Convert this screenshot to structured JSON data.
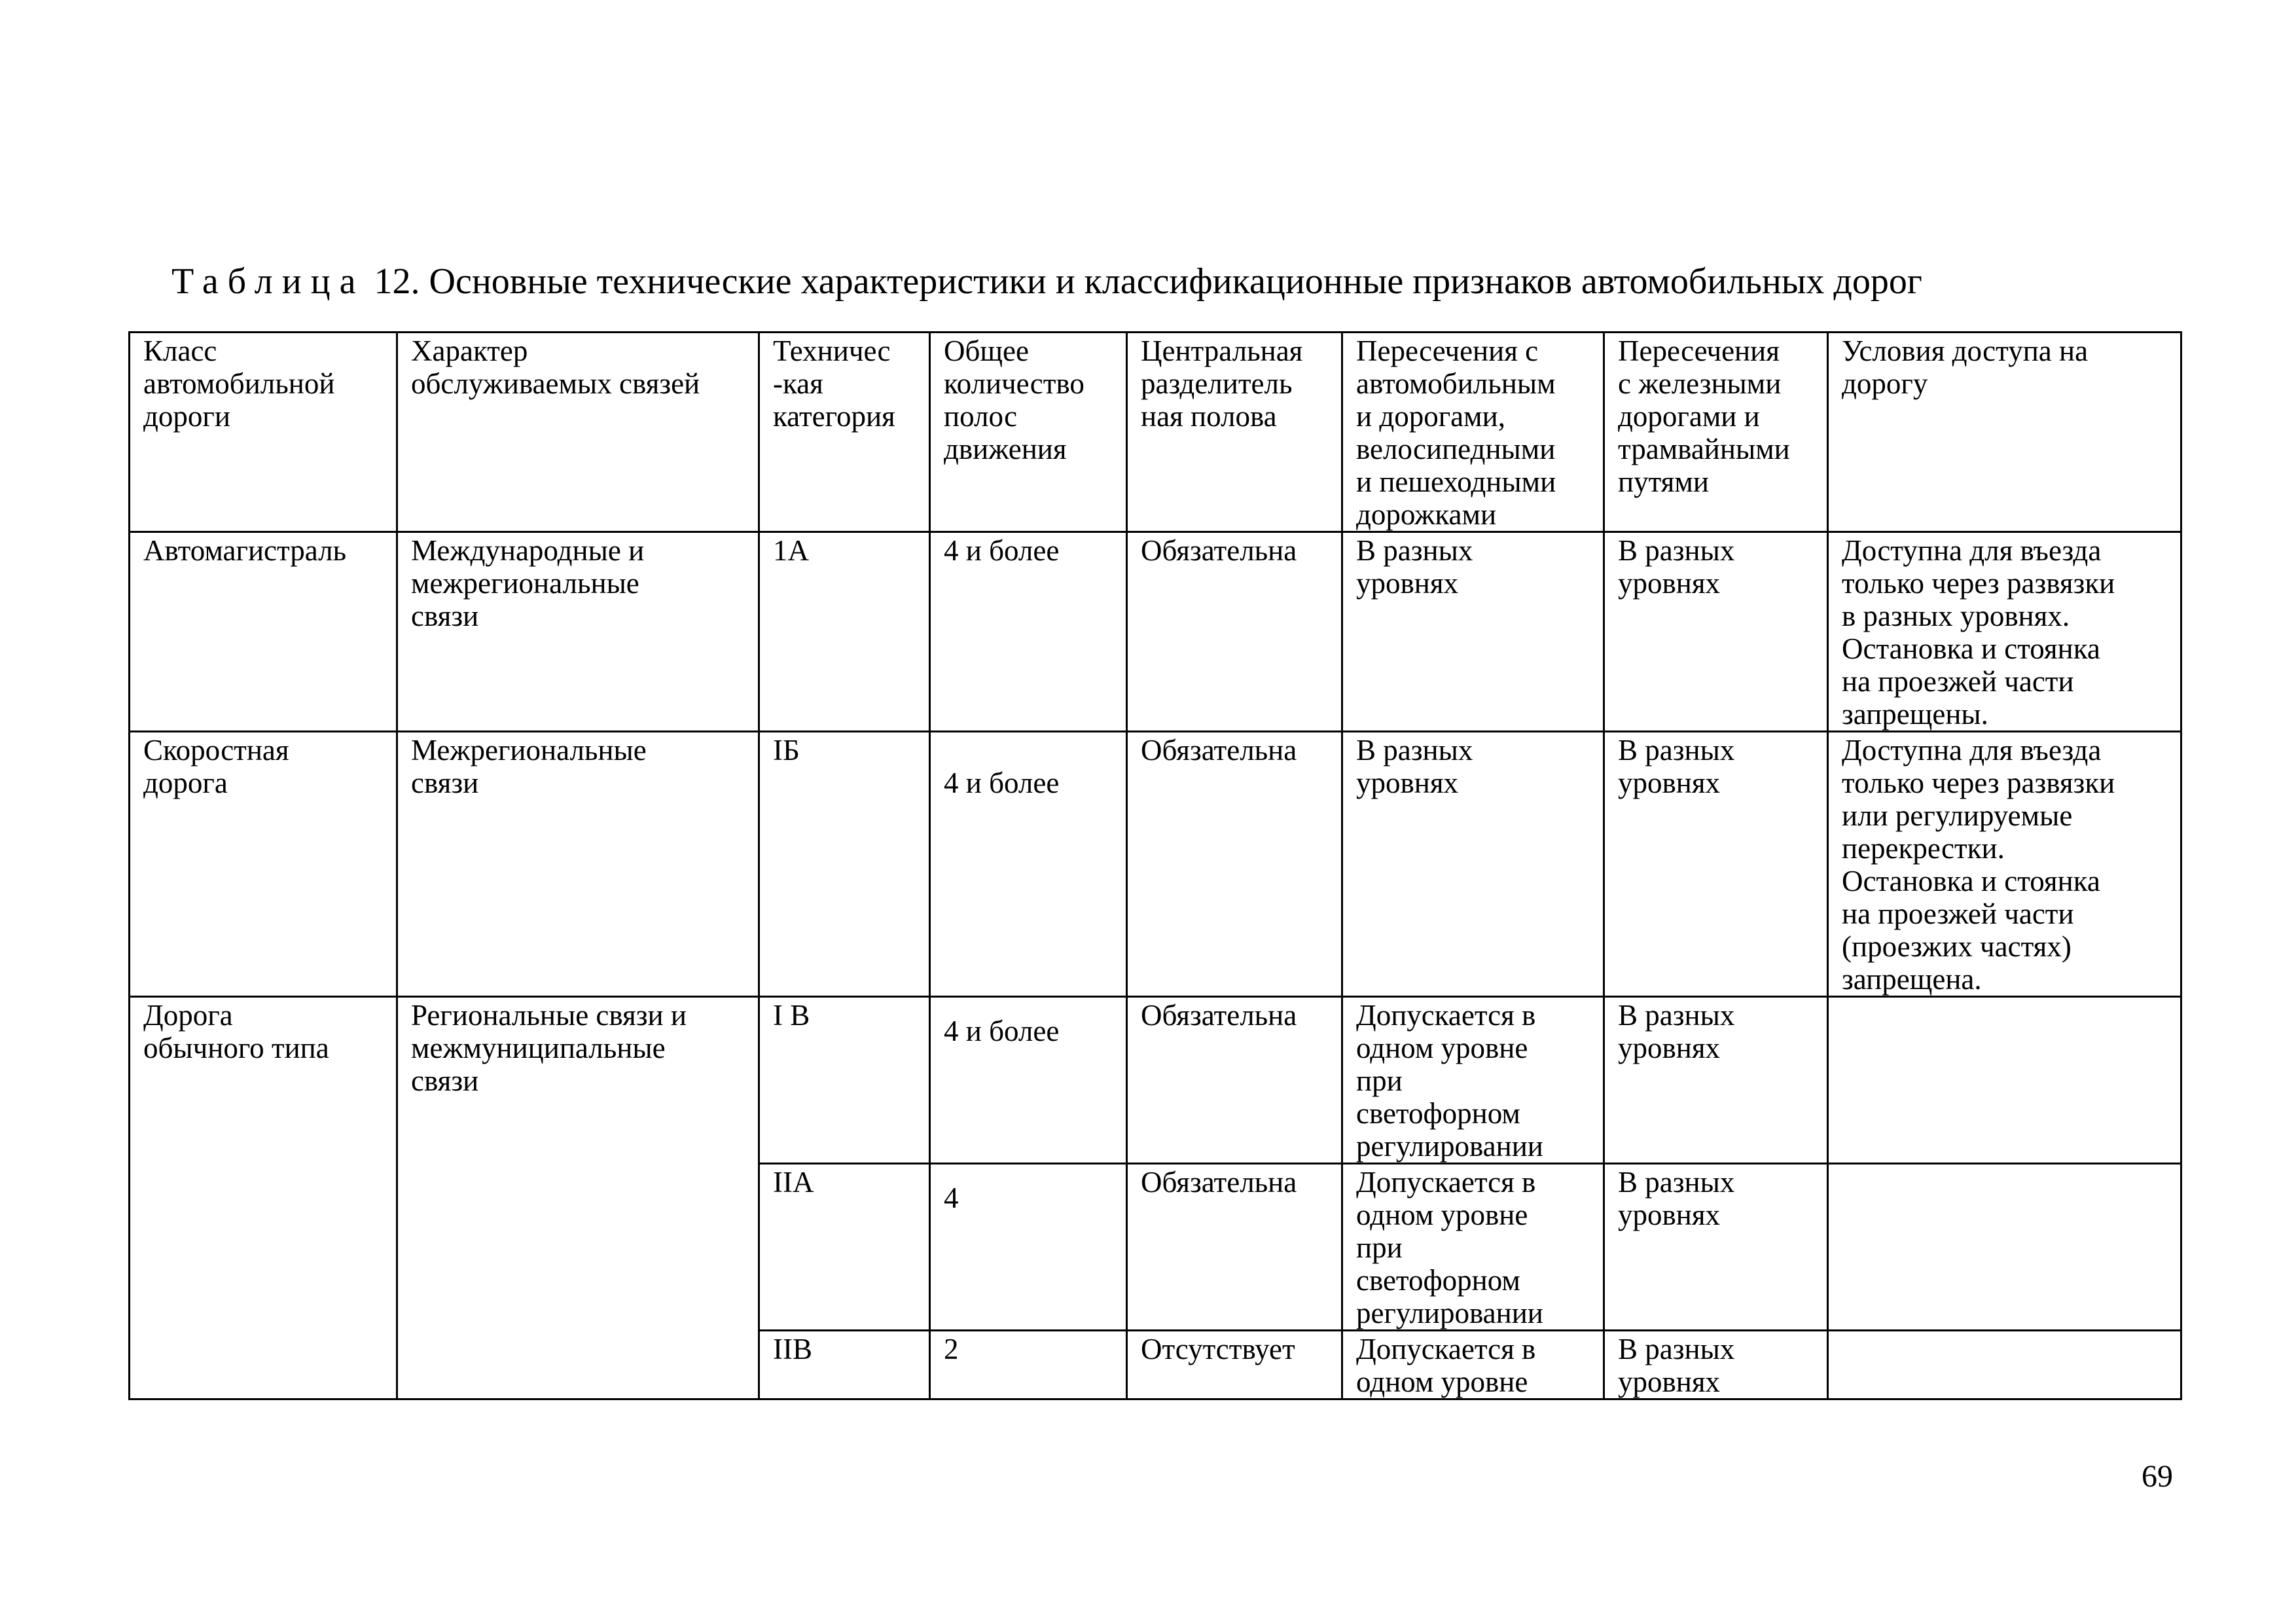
{
  "title": {
    "prefix": "Таблица",
    "text": "12. Основные технические характеристики и классификационные признаков автомобильных дорог"
  },
  "table": {
    "headers": [
      "Класс\nавтомобильной\nдороги",
      "Характер\nобслуживаемых связей",
      "Техничес\n-кая\nкатегория",
      "Общее\nколичество\nполос\nдвижения",
      "Центральная\nразделитель\nная полова",
      "Пересечения с\nавтомобильным\nи дорогами,\nвелосипедными\nи пешеходными\nдорожками",
      "Пересечения\nс железными\nдорогами и\nтрамвайными\nпутями",
      "Условия доступа на\nдорогу"
    ],
    "rows": [
      [
        "Автомагистраль",
        "Международные и\nмежрегиональные\nсвязи",
        "1А",
        "4 и более",
        "Обязательна",
        "В разных\nуровнях",
        "В разных\nуровнях",
        "Доступна для въезда\nтолько через развязки\nв разных уровнях.\nОстановка и стоянка\nна проезжей части\nзапрещены."
      ],
      [
        "Скоростная\nдорога",
        "Межрегиональные\nсвязи",
        "IБ",
        "4 и более",
        "Обязательна",
        "В разных\nуровнях",
        "В разных\nуровнях",
        "Доступна для въезда\nтолько через развязки\nили регулируемые\nперекрестки.\n Остановка и стоянка\nна проезжей части\n(проезжих частях)\nзапрещена."
      ],
      [
        "Дорога\nобычного типа",
        "Региональные связи и\nмежмуниципальные\nсвязи",
        "I В",
        "4 и более",
        "Обязательна",
        "Допускается в\nодном уровне\nпри\nсветофорном\nрегулировании",
        "В разных\nуровнях",
        ""
      ],
      [
        "",
        "",
        "IIА",
        "4",
        "Обязательна",
        "Допускается в\nодном уровне\nпри\nсветофорном\nрегулировании",
        "В разных\nуровнях",
        ""
      ],
      [
        "",
        "",
        "IIВ",
        "2",
        "Отсутствует",
        "Допускается в\nодном уровне",
        "В разных\nуровнях",
        ""
      ]
    ]
  },
  "page_number": "69"
}
